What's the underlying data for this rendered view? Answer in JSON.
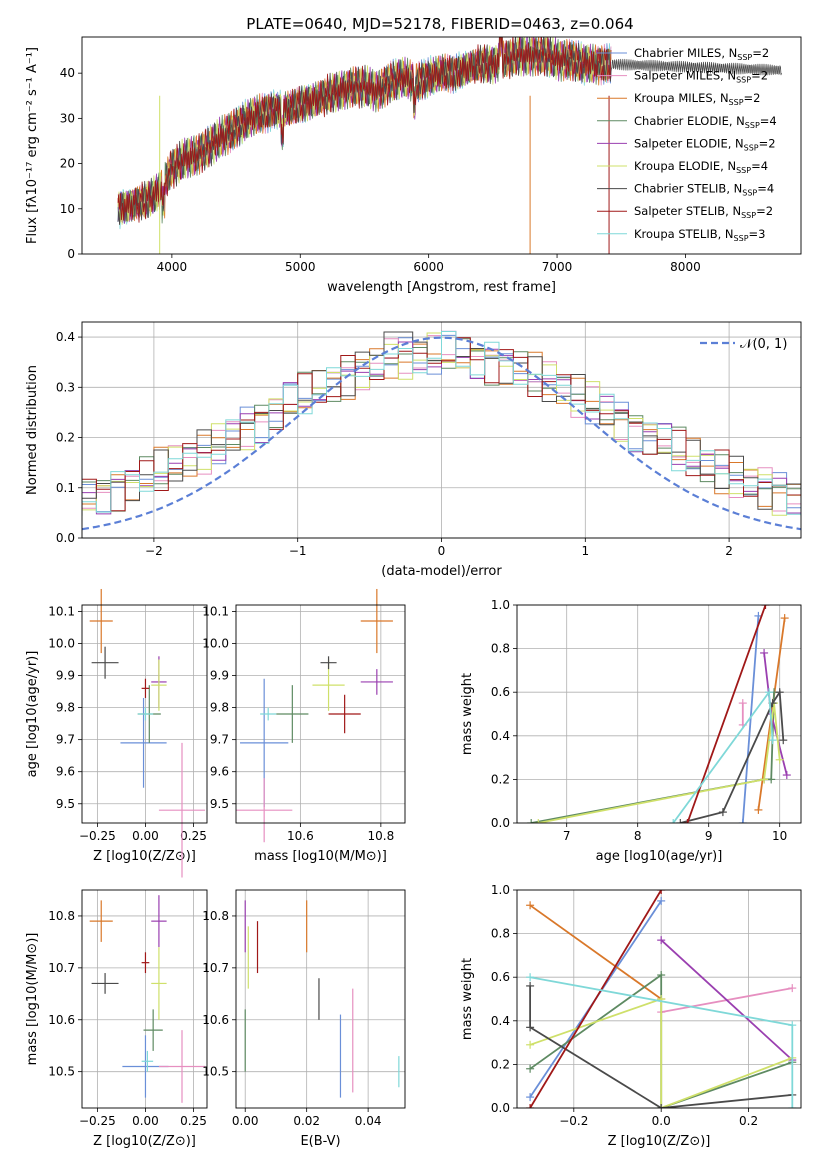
{
  "title": "PLATE=0640, MJD=52178, FIBERID=0463, z=0.064",
  "legend_labels": [
    "Chabrier MILES, N$SSP=2",
    "Salpeter MILES, N$SSP=2",
    "Kroupa MILES, N$SSP=2",
    "Chabrier ELODIE, N$SSP=4",
    "Salpeter ELODIE, N$SSP=2",
    "Kroupa ELODIE, N$SSP=4",
    "Chabrier STELIB, N$SSP=4",
    "Salpeter STELIB, N$SSP=2",
    "Kroupa STELIB, N$SSP=3"
  ],
  "colors": [
    "#6a8fd8",
    "#e68fc0",
    "#d9782a",
    "#5e8a62",
    "#9a3fb0",
    "#cfe06a",
    "#4a4a4a",
    "#a01818",
    "#7fd8d8"
  ],
  "chart_data": [
    {
      "type": "line",
      "xlabel": "wavelength [Angstrom, rest frame]",
      "ylabel": "Flux [fλ10⁻¹⁷ erg cm⁻² s⁻¹ A⁻¹]",
      "xlim": [
        3300,
        8900
      ],
      "ylim": [
        0,
        48
      ],
      "xticks": [
        4000,
        5000,
        6000,
        7000,
        8000
      ],
      "yticks": [
        0,
        10,
        20,
        30,
        40
      ],
      "legend": "upper right",
      "spectrum_x": [
        3580,
        3700,
        3820,
        3900,
        4000,
        4100,
        4200,
        4300,
        4400,
        4500,
        4600,
        4700,
        4800,
        4900,
        5000,
        5100,
        5200,
        5300,
        5400,
        5500,
        5600,
        5700,
        5800,
        5900,
        6000,
        6100,
        6200,
        6300,
        6400,
        6500,
        6600,
        6700,
        6800,
        6900,
        7000,
        7100,
        7200,
        7300,
        7400
      ],
      "spectrum_y": [
        10,
        11,
        12,
        14,
        19,
        21,
        22,
        24,
        26,
        28,
        30,
        31,
        32,
        32,
        33,
        34,
        35,
        36,
        37,
        37,
        36,
        38,
        39,
        38,
        39,
        40,
        40,
        41,
        42,
        42,
        43,
        44,
        44,
        44,
        43,
        43,
        42,
        42,
        42
      ]
    },
    {
      "type": "histogram",
      "xlabel": "(data-model)/error",
      "ylabel": "Normed distribution",
      "xlim": [
        -2.5,
        2.5
      ],
      "ylim": [
        0,
        0.43
      ],
      "xticks": [
        -2,
        -1,
        0,
        1,
        2
      ],
      "yticks": [
        0.0,
        0.1,
        0.2,
        0.3,
        0.4
      ],
      "grid": true,
      "reference_curve": {
        "label": "𝒩(0, 1)",
        "mean": 0,
        "sigma": 1
      },
      "legend": "upper right"
    },
    {
      "type": "scatter",
      "xlabel": "Z [log10(Z/Z⊙)]",
      "ylabel": "age  [log10(age/yr)]",
      "xlim": [
        -0.33,
        0.32
      ],
      "ylim": [
        9.44,
        10.12
      ],
      "xticks": [
        -0.25,
        0.0,
        0.25
      ],
      "xticklabels": [
        "−0.25",
        "0.00",
        "0.25"
      ],
      "yticks": [
        9.5,
        9.6,
        9.7,
        9.8,
        9.9,
        10.0,
        10.1
      ],
      "grid": true,
      "points": [
        {
          "x": -0.01,
          "y": 9.69,
          "xerr": 0.12,
          "yerr": 0.14,
          "c": 0
        },
        {
          "x": 0.19,
          "y": 9.48,
          "xerr": 0.12,
          "yerr": 0.21,
          "c": 1
        },
        {
          "x": -0.23,
          "y": 10.07,
          "xerr": 0.06,
          "yerr": 0.1,
          "c": 2
        },
        {
          "x": 0.02,
          "y": 9.78,
          "xerr": 0.06,
          "yerr": 0.09,
          "c": 3
        },
        {
          "x": 0.07,
          "y": 9.88,
          "xerr": 0.04,
          "yerr": 0.08,
          "c": 4
        },
        {
          "x": 0.07,
          "y": 9.87,
          "xerr": 0.04,
          "yerr": 0.08,
          "c": 5
        },
        {
          "x": -0.21,
          "y": 9.94,
          "xerr": 0.07,
          "yerr": 0.05,
          "c": 6
        },
        {
          "x": 0.0,
          "y": 9.86,
          "xerr": 0.02,
          "yerr": 0.03,
          "c": 7
        },
        {
          "x": 0.0,
          "y": 9.78,
          "xerr": 0.04,
          "yerr": 0.02,
          "c": 8
        }
      ]
    },
    {
      "type": "scatter",
      "xlabel": "mass [log10(M/M⊙)]",
      "ylabel": "",
      "xlim": [
        10.44,
        10.86
      ],
      "ylim": [
        9.44,
        10.12
      ],
      "xticks": [
        10.6,
        10.8
      ],
      "xticklabels": [
        "10.6",
        "10.8"
      ],
      "yticks": [
        9.5,
        9.6,
        9.7,
        9.8,
        9.9,
        10.0,
        10.1
      ],
      "grid": true,
      "points": [
        {
          "x": 10.51,
          "y": 9.69,
          "xerr": 0.06,
          "yerr": 0.2,
          "c": 0
        },
        {
          "x": 10.51,
          "y": 9.48,
          "xerr": 0.07,
          "yerr": 0.1,
          "c": 1
        },
        {
          "x": 10.79,
          "y": 10.07,
          "xerr": 0.04,
          "yerr": 0.1,
          "c": 2
        },
        {
          "x": 10.58,
          "y": 9.78,
          "xerr": 0.04,
          "yerr": 0.09,
          "c": 3
        },
        {
          "x": 10.79,
          "y": 9.88,
          "xerr": 0.04,
          "yerr": 0.04,
          "c": 4
        },
        {
          "x": 10.67,
          "y": 9.87,
          "xerr": 0.04,
          "yerr": 0.08,
          "c": 5
        },
        {
          "x": 10.67,
          "y": 9.94,
          "xerr": 0.02,
          "yerr": 0.02,
          "c": 6
        },
        {
          "x": 10.71,
          "y": 9.78,
          "xerr": 0.04,
          "yerr": 0.06,
          "c": 7
        },
        {
          "x": 10.52,
          "y": 9.78,
          "xerr": 0.02,
          "yerr": 0.02,
          "c": 8
        }
      ]
    },
    {
      "type": "line",
      "xlabel": "age  [log10(age/yr)]",
      "ylabel": "mass weight",
      "xlim": [
        6.3,
        10.3
      ],
      "ylim": [
        0,
        1
      ],
      "xticks": [
        7,
        8,
        9,
        10
      ],
      "yticks": [
        0.0,
        0.2,
        0.4,
        0.6,
        0.8,
        1.0
      ],
      "grid": true,
      "series": [
        {
          "c": 0,
          "x": [
            9.48,
            9.7
          ],
          "y": [
            0.0,
            0.95
          ]
        },
        {
          "c": 1,
          "x": [
            9.48,
            9.48
          ],
          "y": [
            0.45,
            0.55
          ]
        },
        {
          "c": 2,
          "x": [
            9.7,
            10.07
          ],
          "y": [
            0.06,
            0.94
          ]
        },
        {
          "c": 3,
          "x": [
            6.5,
            9.78,
            9.88,
            9.92
          ],
          "y": [
            0.0,
            0.2,
            0.2,
            0.6
          ]
        },
        {
          "c": 4,
          "x": [
            9.78,
            9.88,
            10.1
          ],
          "y": [
            0.78,
            0.5,
            0.22
          ]
        },
        {
          "c": 5,
          "x": [
            6.6,
            9.78,
            9.92,
            10.0
          ],
          "y": [
            0.0,
            0.2,
            0.55,
            0.29
          ]
        },
        {
          "c": 6,
          "x": [
            8.6,
            9.2,
            9.9,
            10.0,
            10.05
          ],
          "y": [
            0.0,
            0.05,
            0.55,
            0.6,
            0.38
          ]
        },
        {
          "c": 7,
          "x": [
            8.7,
            9.8
          ],
          "y": [
            0.0,
            1.0
          ]
        },
        {
          "c": 8,
          "x": [
            8.5,
            9.85,
            9.9
          ],
          "y": [
            0.0,
            0.6,
            0.38
          ]
        }
      ]
    },
    {
      "type": "scatter",
      "xlabel": "Z [log10(Z/Z⊙)]",
      "ylabel": "mass [log10(M/M⊙)]",
      "xlim": [
        -0.33,
        0.32
      ],
      "ylim": [
        10.43,
        10.85
      ],
      "xticks": [
        -0.25,
        0.0,
        0.25
      ],
      "xticklabels": [
        "−0.25",
        "0.00",
        "0.25"
      ],
      "yticks": [
        10.5,
        10.6,
        10.7,
        10.8
      ],
      "grid": true,
      "points": [
        {
          "x": 0.0,
          "y": 10.51,
          "xerr": 0.12,
          "yerr": 0.06,
          "c": 0
        },
        {
          "x": 0.19,
          "y": 10.51,
          "xerr": 0.12,
          "yerr": 0.07,
          "c": 1
        },
        {
          "x": -0.23,
          "y": 10.79,
          "xerr": 0.06,
          "yerr": 0.04,
          "c": 2
        },
        {
          "x": 0.04,
          "y": 10.58,
          "xerr": 0.05,
          "yerr": 0.04,
          "c": 3
        },
        {
          "x": 0.07,
          "y": 10.79,
          "xerr": 0.04,
          "yerr": 0.05,
          "c": 4
        },
        {
          "x": 0.07,
          "y": 10.67,
          "xerr": 0.04,
          "yerr": 0.07,
          "c": 5
        },
        {
          "x": -0.21,
          "y": 10.67,
          "xerr": 0.07,
          "yerr": 0.02,
          "c": 6
        },
        {
          "x": 0.0,
          "y": 10.71,
          "xerr": 0.02,
          "yerr": 0.02,
          "c": 7
        },
        {
          "x": 0.01,
          "y": 10.52,
          "xerr": 0.03,
          "yerr": 0.02,
          "c": 8
        }
      ]
    },
    {
      "type": "scatter",
      "xlabel": "E(B-V)",
      "ylabel": "",
      "xlim": [
        -0.003,
        0.052
      ],
      "ylim": [
        10.43,
        10.85
      ],
      "xticks": [
        0.0,
        0.02,
        0.04
      ],
      "xticklabels": [
        "0.00",
        "0.02",
        "0.04"
      ],
      "yticks": [
        10.5,
        10.6,
        10.7,
        10.8
      ],
      "grid": true,
      "points": [
        {
          "x": 0.031,
          "y": 10.53,
          "xerr": 0,
          "yerr": 0.08,
          "c": 0
        },
        {
          "x": 0.035,
          "y": 10.56,
          "xerr": 0,
          "yerr": 0.1,
          "c": 1
        },
        {
          "x": 0.02,
          "y": 10.78,
          "xerr": 0,
          "yerr": 0.05,
          "c": 2
        },
        {
          "x": 0.0,
          "y": 10.56,
          "xerr": 0,
          "yerr": 0.06,
          "c": 3
        },
        {
          "x": 0.0,
          "y": 10.78,
          "xerr": 0,
          "yerr": 0.05,
          "c": 4
        },
        {
          "x": 0.001,
          "y": 10.72,
          "xerr": 0,
          "yerr": 0.06,
          "c": 5
        },
        {
          "x": 0.024,
          "y": 10.64,
          "xerr": 0,
          "yerr": 0.04,
          "c": 6
        },
        {
          "x": 0.004,
          "y": 10.74,
          "xerr": 0,
          "yerr": 0.05,
          "c": 7
        },
        {
          "x": 0.05,
          "y": 10.5,
          "xerr": 0,
          "yerr": 0.03,
          "c": 8
        }
      ]
    },
    {
      "type": "line",
      "xlabel": "Z [log10(Z/Z⊙)]",
      "ylabel": "mass weight",
      "xlim": [
        -0.33,
        0.32
      ],
      "ylim": [
        0,
        1
      ],
      "xticks": [
        -0.2,
        0.0,
        0.2
      ],
      "xticklabels": [
        "−0.2",
        "0.0",
        "0.2"
      ],
      "yticks": [
        0.0,
        0.2,
        0.4,
        0.6,
        0.8,
        1.0
      ],
      "grid": true,
      "series": [
        {
          "c": 0,
          "x": [
            -0.3,
            0.0
          ],
          "y": [
            0.05,
            0.95
          ]
        },
        {
          "c": 1,
          "x": [
            0.0,
            0.3
          ],
          "y": [
            0.44,
            0.55
          ]
        },
        {
          "c": 2,
          "x": [
            -0.3,
            0.0
          ],
          "y": [
            0.93,
            0.5
          ]
        },
        {
          "c": 3,
          "x": [
            -0.3,
            0.0,
            0.0,
            0.3
          ],
          "y": [
            0.18,
            0.61,
            0.0,
            0.21
          ]
        },
        {
          "c": 4,
          "x": [
            0.0,
            0.3
          ],
          "y": [
            0.77,
            0.22
          ]
        },
        {
          "c": 5,
          "x": [
            -0.3,
            0.0,
            0.0,
            0.3
          ],
          "y": [
            0.29,
            0.5,
            0.0,
            0.23
          ]
        },
        {
          "c": 6,
          "x": [
            -0.3,
            -0.3,
            0.0,
            0.3
          ],
          "y": [
            0.56,
            0.37,
            0.0,
            0.06
          ]
        },
        {
          "c": 7,
          "x": [
            -0.3,
            0.0
          ],
          "y": [
            0.0,
            1.0
          ]
        },
        {
          "c": 8,
          "x": [
            -0.3,
            0.3,
            0.3
          ],
          "y": [
            0.6,
            0.38,
            0.0
          ]
        }
      ]
    }
  ]
}
